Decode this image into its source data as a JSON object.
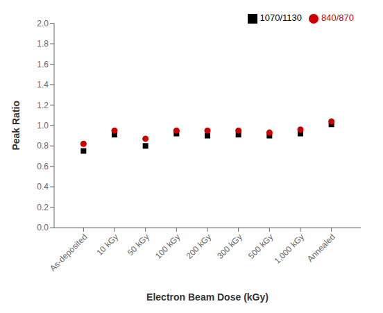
{
  "chart_data": {
    "type": "scatter",
    "categories": [
      "As-deposited",
      "10 kGy",
      "50 kGy",
      "100 kGy",
      "200 kGy",
      "300 kGy",
      "500 kGy",
      "1,000 kGy",
      "Annealed"
    ],
    "series": [
      {
        "name": "1070/1130",
        "color": "#000000",
        "marker": "square",
        "values": [
          0.75,
          0.91,
          0.8,
          0.92,
          0.9,
          0.91,
          0.9,
          0.92,
          1.01
        ]
      },
      {
        "name": "840/870",
        "color": "#cc0000",
        "marker": "circle",
        "values": [
          0.82,
          0.95,
          0.87,
          0.95,
          0.95,
          0.95,
          0.93,
          0.96,
          1.04
        ]
      }
    ],
    "xlabel": "Electron Beam Dose (kGy)",
    "ylabel": "Peak Ratio",
    "ylim": [
      0.0,
      2.0
    ],
    "yticks": [
      {
        "value": 0,
        "label": "0.0"
      },
      0.2,
      0.4,
      0.6,
      0.8,
      {
        "value": 1,
        "label": "1.0"
      },
      1.2,
      1.4,
      1.6,
      1.8,
      {
        "value": 2,
        "label": "2.0"
      }
    ],
    "grid": false,
    "legend": "upper right"
  }
}
